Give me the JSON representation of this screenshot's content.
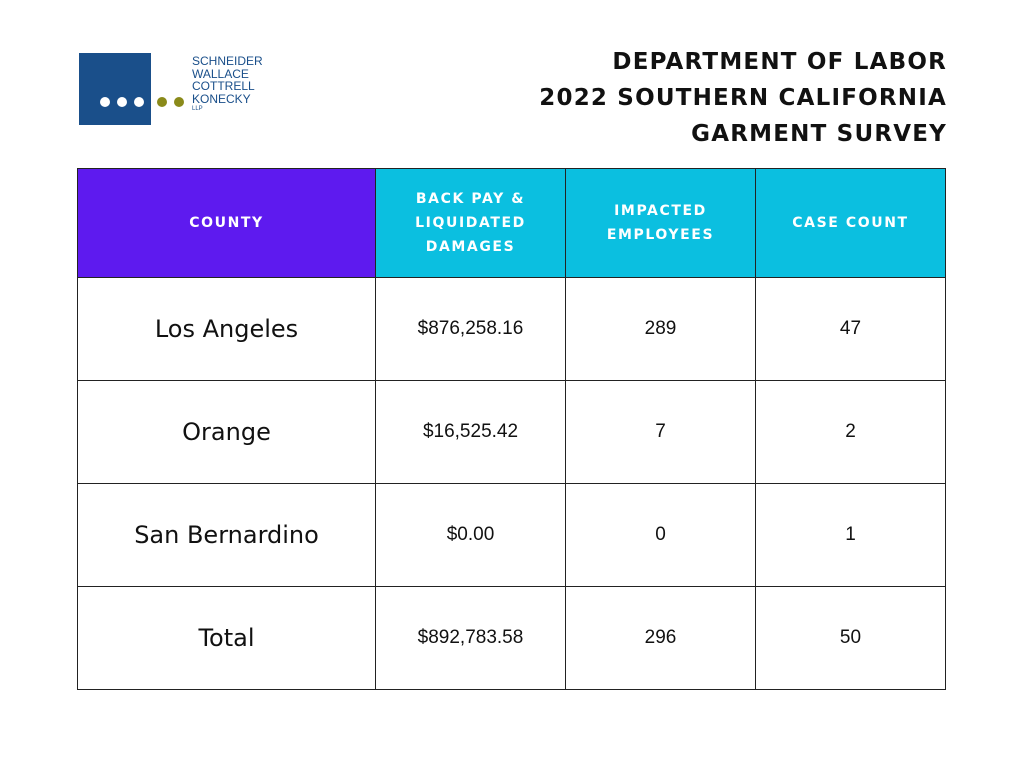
{
  "logo": {
    "lines": [
      "SCHNEIDER",
      "WALLACE",
      "COTTRELL",
      "KONECKY"
    ],
    "suffix": "LLP",
    "colors": {
      "square": "#1a4f8a",
      "dots_white": "#ffffff",
      "dots_olive": "#8a8a1a"
    }
  },
  "title": {
    "line1": "DEPARTMENT OF LABOR",
    "line2": "2022 SOUTHERN CALIFORNIA",
    "line3": "GARMENT SURVEY"
  },
  "table": {
    "headers": [
      "COUNTY",
      "BACK PAY & LIQUIDATED DAMAGES",
      "IMPACTED EMPLOYEES",
      "CASE COUNT"
    ],
    "header_colors": {
      "county": "#5e1aef",
      "others": "#0bbfe0"
    },
    "rows": [
      [
        "Los Angeles",
        "$876,258.16",
        "289",
        "47"
      ],
      [
        "Orange",
        "$16,525.42",
        "7",
        "2"
      ],
      [
        "San Bernardino",
        "$0.00",
        "0",
        "1"
      ],
      [
        "Total",
        "$892,783.58",
        "296",
        "50"
      ]
    ]
  }
}
